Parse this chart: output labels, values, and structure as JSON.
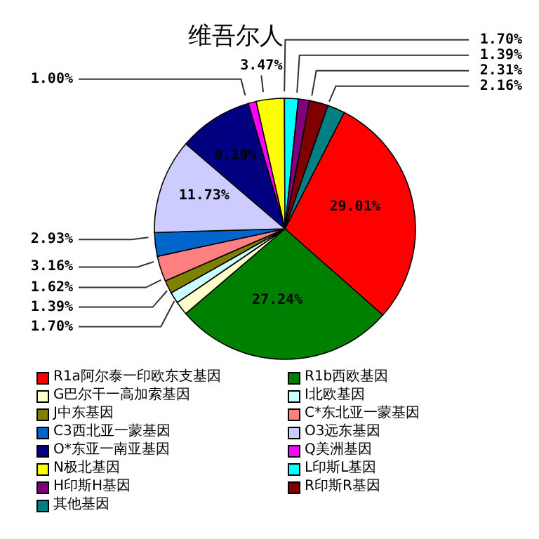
{
  "chart_data": {
    "type": "pie",
    "title": "维吾尔人",
    "categories": [
      "R1a阿尔泰一印欧东支基因",
      "R1b西欧基因",
      "G巴尔干一高加索基因",
      "I北欧基因",
      "J中东基因",
      "C*东北亚一蒙基因",
      "C3西北亚一蒙基因",
      "O3远东基因",
      "O*东亚一南亚基因",
      "Q美洲基因",
      "N极北基因",
      "L印斯L基因",
      "H印斯H基因",
      "R印斯R基因",
      "其他基因"
    ],
    "values": [
      29.01,
      27.24,
      1.7,
      1.39,
      1.62,
      3.16,
      2.93,
      11.73,
      9.19,
      1.0,
      3.47,
      1.7,
      1.39,
      2.31,
      2.16
    ],
    "colors": [
      "#ff0000",
      "#008000",
      "#ffffcc",
      "#ccffff",
      "#808000",
      "#ff8080",
      "#0066cc",
      "#ccccff",
      "#000080",
      "#ff00ff",
      "#ffff00",
      "#00ffff",
      "#800080",
      "#800000",
      "#008080"
    ],
    "value_labels": [
      "29.01%",
      "27.24%",
      "1.70%",
      "1.39%",
      "1.62%",
      "3.16%",
      "2.93%",
      "11.73%",
      "9.19%",
      "1.00%",
      "3.47%",
      "1.70%",
      "1.39%",
      "2.31%",
      "2.16%"
    ],
    "legend": "bottom"
  }
}
